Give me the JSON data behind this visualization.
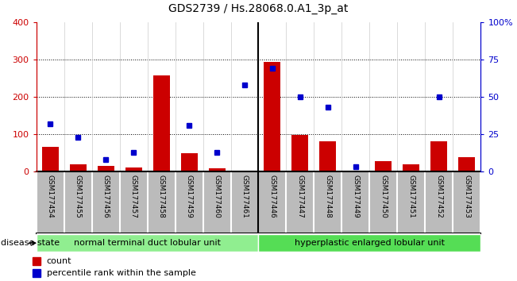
{
  "title": "GDS2739 / Hs.28068.0.A1_3p_at",
  "samples": [
    "GSM177454",
    "GSM177455",
    "GSM177456",
    "GSM177457",
    "GSM177458",
    "GSM177459",
    "GSM177460",
    "GSM177461",
    "GSM177446",
    "GSM177447",
    "GSM177448",
    "GSM177449",
    "GSM177450",
    "GSM177451",
    "GSM177452",
    "GSM177453"
  ],
  "counts": [
    65,
    18,
    15,
    10,
    258,
    48,
    8,
    0,
    295,
    97,
    80,
    0,
    28,
    18,
    80,
    38
  ],
  "percentiles": [
    32,
    23,
    8,
    13,
    0,
    31,
    13,
    58,
    69,
    50,
    43,
    3,
    0,
    0,
    50,
    0
  ],
  "group1_label": "normal terminal duct lobular unit",
  "group2_label": "hyperplastic enlarged lobular unit",
  "disease_state_label": "disease state",
  "ylim_left": [
    0,
    400
  ],
  "ylim_right": [
    0,
    100
  ],
  "left_yticks": [
    0,
    100,
    200,
    300,
    400
  ],
  "right_yticks": [
    0,
    25,
    50,
    75,
    100
  ],
  "right_yticklabels": [
    "0",
    "25",
    "50",
    "75",
    "100%"
  ],
  "bar_color": "#cc0000",
  "dot_color": "#0000cc",
  "group1_color": "#90ee90",
  "group2_color": "#55dd55",
  "label_bg_color": "#bbbbbb",
  "plot_bg": "#ffffff",
  "legend_count_label": "count",
  "legend_pct_label": "percentile rank within the sample",
  "n_group1": 8,
  "n_group2": 8
}
